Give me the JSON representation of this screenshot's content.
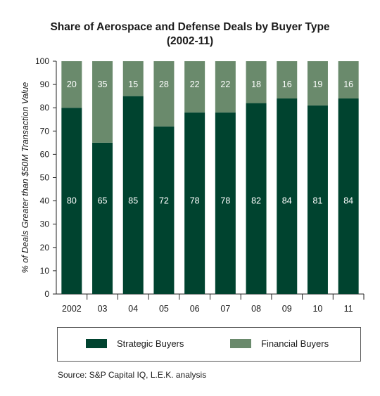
{
  "chart_data": {
    "type": "bar",
    "stacked": true,
    "title_line1": "Share of Aerospace and Defense Deals by Buyer Type",
    "title_line2": "(2002-11)",
    "ylabel": "% of Deals Greater than $50M Transaction Value",
    "xlabel": "",
    "ylim": [
      0,
      100
    ],
    "yticks": [
      0,
      10,
      20,
      30,
      40,
      50,
      60,
      70,
      80,
      90,
      100
    ],
    "categories": [
      "2002",
      "03",
      "04",
      "05",
      "06",
      "07",
      "08",
      "09",
      "10",
      "11"
    ],
    "series": [
      {
        "name": "Strategic Buyers",
        "color": "#00432f",
        "values": [
          80,
          65,
          85,
          72,
          78,
          78,
          82,
          84,
          81,
          84
        ]
      },
      {
        "name": "Financial Buyers",
        "color": "#6a8a6c",
        "values": [
          20,
          35,
          15,
          28,
          22,
          22,
          18,
          16,
          19,
          16
        ]
      }
    ],
    "grid": false,
    "legend_position": "bottom"
  },
  "source": "Source:  S&P Capital IQ, L.E.K. analysis"
}
